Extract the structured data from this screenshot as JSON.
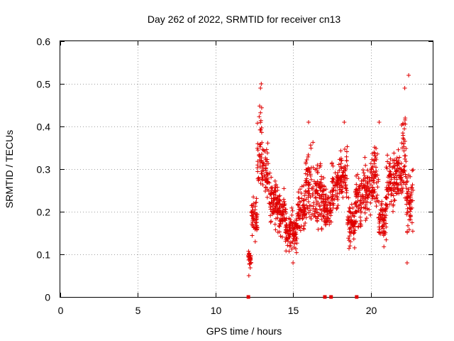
{
  "chart_data": {
    "type": "scatter",
    "title": "Day 262 of 2022, SRMTID for receiver cn13",
    "xlabel": "GPS time / hours",
    "ylabel": "SRMTID / TECUs",
    "xlim": [
      0,
      24
    ],
    "ylim": [
      0,
      0.6
    ],
    "xticks": [
      "0",
      "5",
      "10",
      "15",
      "20"
    ],
    "xtick_values": [
      0,
      5,
      10,
      15,
      20
    ],
    "yticks": [
      "0",
      "0.1",
      "0.2",
      "0.3",
      "0.4",
      "0.5",
      "0.6"
    ],
    "ytick_values": [
      0,
      0.1,
      0.2,
      0.3,
      0.4,
      0.5,
      0.6
    ],
    "grid": true,
    "marker": "+",
    "color": "#e00000",
    "data_start_hour": 12.1,
    "data_end_hour": 22.75,
    "zero_markers_x": [
      12.12,
      17.05,
      17.45,
      19.1
    ],
    "series": [
      {
        "name": "SRMTID",
        "color": "#e00000",
        "segments": [
          {
            "x": [
              12.1,
              12.3
            ],
            "y": [
              0.06,
              0.12
            ]
          },
          {
            "x": [
              12.3,
              12.7
            ],
            "y": [
              0.12,
              0.25
            ]
          },
          {
            "x": [
              12.7,
              13.0
            ],
            "y": [
              0.22,
              0.48
            ]
          },
          {
            "x": [
              13.0,
              13.4
            ],
            "y": [
              0.2,
              0.38
            ]
          },
          {
            "x": [
              13.4,
              14.0
            ],
            "y": [
              0.15,
              0.3
            ]
          },
          {
            "x": [
              14.0,
              14.5
            ],
            "y": [
              0.13,
              0.27
            ]
          },
          {
            "x": [
              14.5,
              15.3
            ],
            "y": [
              0.09,
              0.22
            ]
          },
          {
            "x": [
              15.3,
              15.8
            ],
            "y": [
              0.12,
              0.28
            ]
          },
          {
            "x": [
              15.8,
              16.3
            ],
            "y": [
              0.15,
              0.38
            ]
          },
          {
            "x": [
              16.3,
              17.0
            ],
            "y": [
              0.13,
              0.35
            ]
          },
          {
            "x": [
              17.0,
              17.5
            ],
            "y": [
              0.14,
              0.27
            ]
          },
          {
            "x": [
              17.5,
              18.0
            ],
            "y": [
              0.18,
              0.33
            ]
          },
          {
            "x": [
              18.0,
              18.5
            ],
            "y": [
              0.2,
              0.38
            ]
          },
          {
            "x": [
              18.5,
              19.0
            ],
            "y": [
              0.1,
              0.25
            ]
          },
          {
            "x": [
              19.0,
              19.5
            ],
            "y": [
              0.13,
              0.32
            ]
          },
          {
            "x": [
              19.5,
              20.0
            ],
            "y": [
              0.16,
              0.34
            ]
          },
          {
            "x": [
              20.0,
              20.5
            ],
            "y": [
              0.18,
              0.38
            ]
          },
          {
            "x": [
              20.5,
              21.0
            ],
            "y": [
              0.11,
              0.26
            ]
          },
          {
            "x": [
              21.0,
              21.5
            ],
            "y": [
              0.18,
              0.36
            ]
          },
          {
            "x": [
              21.5,
              22.0
            ],
            "y": [
              0.2,
              0.38
            ]
          },
          {
            "x": [
              22.0,
              22.3
            ],
            "y": [
              0.2,
              0.48
            ]
          },
          {
            "x": [
              22.3,
              22.75
            ],
            "y": [
              0.12,
              0.32
            ]
          }
        ],
        "extremes": [
          {
            "x": 12.95,
            "y": 0.5
          },
          {
            "x": 12.9,
            "y": 0.49
          },
          {
            "x": 22.45,
            "y": 0.52
          },
          {
            "x": 22.2,
            "y": 0.49
          },
          {
            "x": 15.0,
            "y": 0.08
          },
          {
            "x": 22.35,
            "y": 0.08
          },
          {
            "x": 12.15,
            "y": 0.05
          },
          {
            "x": 16.0,
            "y": 0.41
          },
          {
            "x": 18.3,
            "y": 0.41
          },
          {
            "x": 20.55,
            "y": 0.41
          }
        ]
      }
    ]
  }
}
